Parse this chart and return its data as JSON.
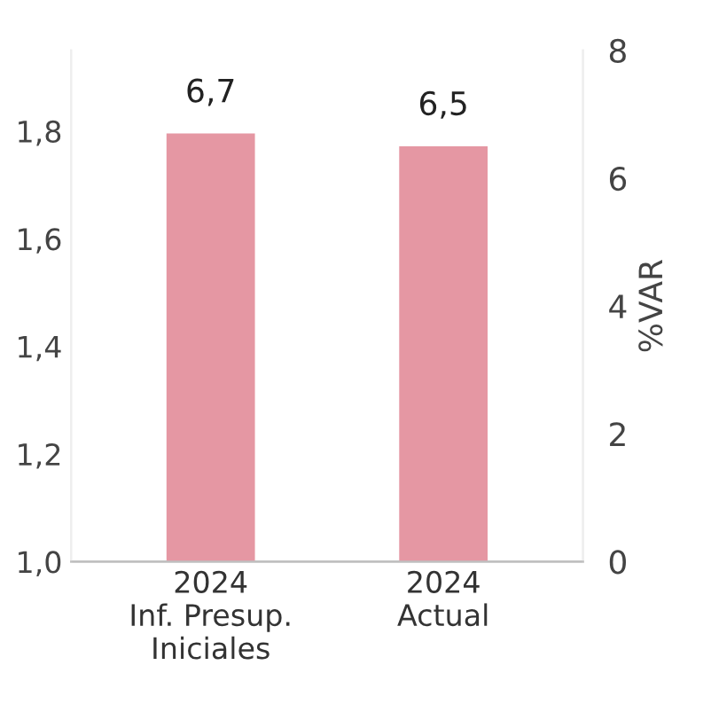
{
  "chart_data": {
    "type": "bar",
    "categories": [
      "2024\nInf. Presup.\nIniciales",
      "2024\nActual"
    ],
    "series": [
      {
        "values": [
          6.7,
          6.5
        ],
        "color": "#e597a3",
        "axis": "y2",
        "value_labels": [
          "6,7",
          "6,5"
        ]
      }
    ],
    "ylim": [
      1.0,
      1.95
    ],
    "yticks": [
      {
        "value": 1.0,
        "label": "1,0"
      },
      {
        "value": 1.2,
        "label": "1,2"
      },
      {
        "value": 1.4,
        "label": "1,4"
      },
      {
        "value": 1.6,
        "label": "1,6"
      },
      {
        "value": 1.8,
        "label": "1,8"
      }
    ],
    "y2lim": [
      0,
      8
    ],
    "y2ticks": [
      0,
      2,
      4,
      6,
      8
    ],
    "y2label": "%VAR",
    "grid": false,
    "legend": false
  }
}
